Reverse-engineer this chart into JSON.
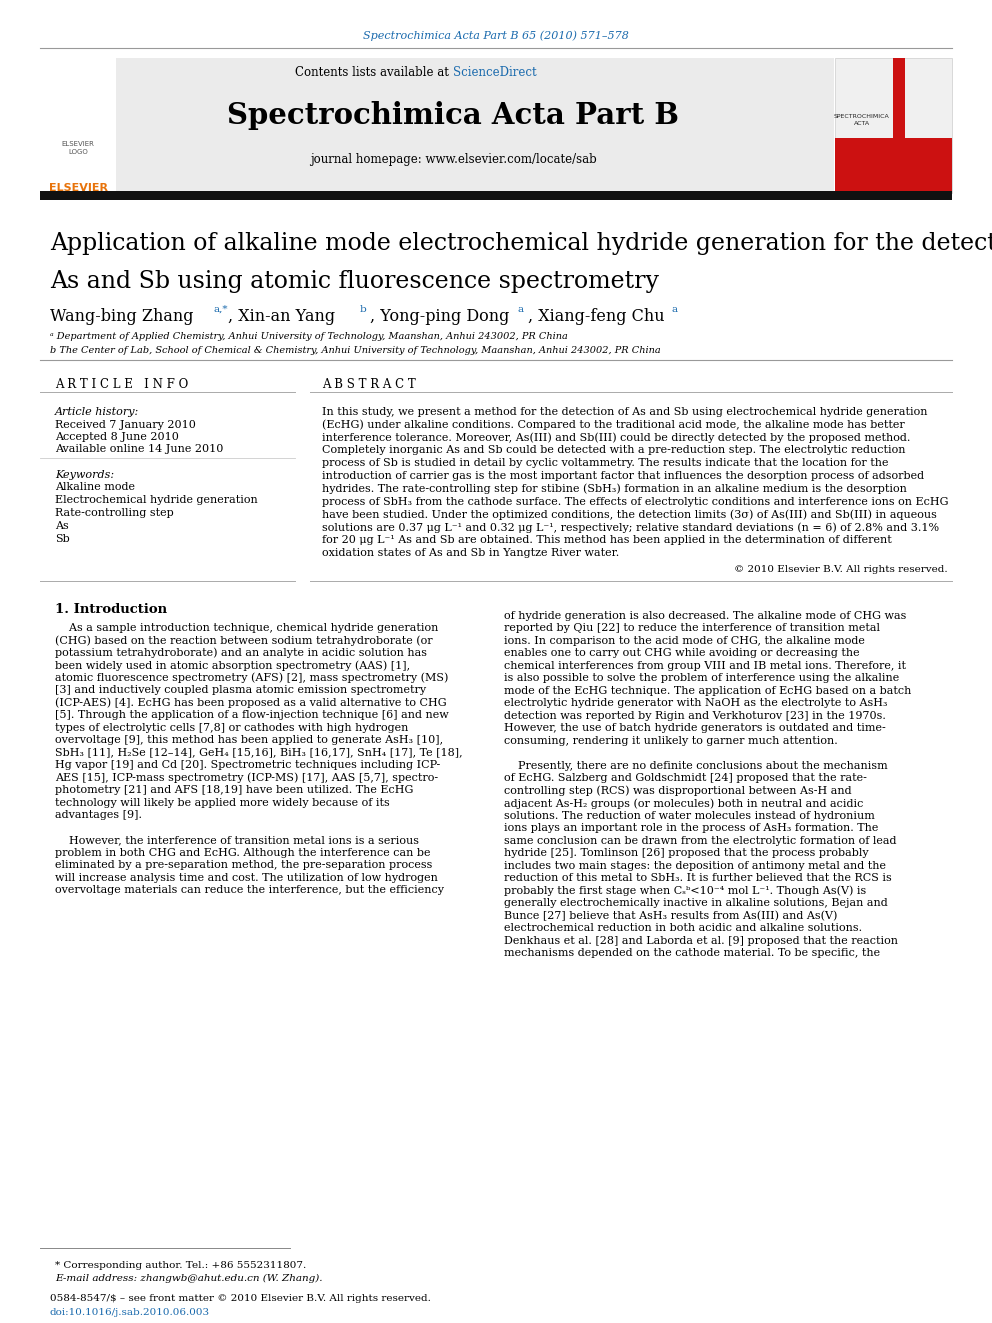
{
  "journal_ref": "Spectrochimica Acta Part B 65 (2010) 571–578",
  "journal_name": "Spectrochimica Acta Part B",
  "journal_homepage": "journal homepage: www.elsevier.com/locate/sab",
  "title_line1": "Application of alkaline mode electrochemical hydride generation for the detection of",
  "title_line2": "As and Sb using atomic fluorescence spectrometry",
  "affil_a": "ᵃ Department of Applied Chemistry, Anhui University of Technology, Maanshan, Anhui 243002, PR China",
  "affil_b": "b The Center of Lab, School of Chemical & Chemistry, Anhui University of Technology, Maanshan, Anhui 243002, PR China",
  "article_info_header": "A R T I C L E   I N F O",
  "abstract_header": "A B S T R A C T",
  "article_history_label": "Article history:",
  "received": "Received 7 January 2010",
  "accepted": "Accepted 8 June 2010",
  "available": "Available online 14 June 2010",
  "keywords_label": "Keywords:",
  "keywords": [
    "Alkaline mode",
    "Electrochemical hydride generation",
    "Rate-controlling step",
    "As",
    "Sb"
  ],
  "abstract_lines": [
    "In this study, we present a method for the detection of As and Sb using electrochemical hydride generation",
    "(EcHG) under alkaline conditions. Compared to the traditional acid mode, the alkaline mode has better",
    "interference tolerance. Moreover, As(III) and Sb(III) could be directly detected by the proposed method.",
    "Completely inorganic As and Sb could be detected with a pre-reduction step. The electrolytic reduction",
    "process of Sb is studied in detail by cyclic voltammetry. The results indicate that the location for the",
    "introduction of carrier gas is the most important factor that influences the desorption process of adsorbed",
    "hydrides. The rate-controlling step for stibine (SbH₃) formation in an alkaline medium is the desorption",
    "process of SbH₃ from the cathode surface. The effects of electrolytic conditions and interference ions on EcHG",
    "have been studied. Under the optimized conditions, the detection limits (3σ) of As(III) and Sb(III) in aqueous",
    "solutions are 0.37 μg L⁻¹ and 0.32 μg L⁻¹, respectively; relative standard deviations (n = 6) of 2.8% and 3.1%",
    "for 20 μg L⁻¹ As and Sb are obtained. This method has been applied in the determination of different",
    "oxidation states of As and Sb in Yangtze River water."
  ],
  "copyright": "© 2010 Elsevier B.V. All rights reserved.",
  "intro_header": "1. Introduction",
  "intro_left_lines": [
    "    As a sample introduction technique, chemical hydride generation",
    "(CHG) based on the reaction between sodium tetrahydroborate (or",
    "potassium tetrahydroborate) and an analyte in acidic solution has",
    "been widely used in atomic absorption spectrometry (AAS) [1],",
    "atomic fluorescence spectrometry (AFS) [2], mass spectrometry (MS)",
    "[3] and inductively coupled plasma atomic emission spectrometry",
    "(ICP-AES) [4]. EcHG has been proposed as a valid alternative to CHG",
    "[5]. Through the application of a flow-injection technique [6] and new",
    "types of electrolytic cells [7,8] or cathodes with high hydrogen",
    "overvoltage [9], this method has been applied to generate AsH₃ [10],",
    "SbH₃ [11], H₂Se [12–14], GeH₄ [15,16], BiH₃ [16,17], SnH₄ [17], Te [18],",
    "Hg vapor [19] and Cd [20]. Spectrometric techniques including ICP-",
    "AES [15], ICP-mass spectrometry (ICP-MS) [17], AAS [5,7], spectro-",
    "photometry [21] and AFS [18,19] have been utilized. The EcHG",
    "technology will likely be applied more widely because of its",
    "advantages [9].",
    "",
    "    However, the interference of transition metal ions is a serious",
    "problem in both CHG and EcHG. Although the interference can be",
    "eliminated by a pre-separation method, the pre-separation process",
    "will increase analysis time and cost. The utilization of low hydrogen",
    "overvoltage materials can reduce the interference, but the efficiency"
  ],
  "intro_right_lines": [
    "of hydride generation is also decreased. The alkaline mode of CHG was",
    "reported by Qiu [22] to reduce the interference of transition metal",
    "ions. In comparison to the acid mode of CHG, the alkaline mode",
    "enables one to carry out CHG while avoiding or decreasing the",
    "chemical interferences from group VIII and IB metal ions. Therefore, it",
    "is also possible to solve the problem of interference using the alkaline",
    "mode of the EcHG technique. The application of EcHG based on a batch",
    "electrolytic hydride generator with NaOH as the electrolyte to AsH₃",
    "detection was reported by Rigin and Verkhoturov [23] in the 1970s.",
    "However, the use of batch hydride generators is outdated and time-",
    "consuming, rendering it unlikely to garner much attention.",
    "",
    "    Presently, there are no definite conclusions about the mechanism",
    "of EcHG. Salzberg and Goldschmidt [24] proposed that the rate-",
    "controlling step (RCS) was disproportional between As-H and",
    "adjacent As-H₂ groups (or molecules) both in neutral and acidic",
    "solutions. The reduction of water molecules instead of hydronium",
    "ions plays an important role in the process of AsH₃ formation. The",
    "same conclusion can be drawn from the electrolytic formation of lead",
    "hydride [25]. Tomlinson [26] proposed that the process probably",
    "includes two main stages: the deposition of antimony metal and the",
    "reduction of this metal to SbH₃. It is further believed that the RCS is",
    "probably the first stage when Cₛᵇ<10⁻⁴ mol L⁻¹. Though As(V) is",
    "generally electrochemically inactive in alkaline solutions, Bejan and",
    "Bunce [27] believe that AsH₃ results from As(III) and As(V)",
    "electrochemical reduction in both acidic and alkaline solutions.",
    "Denkhaus et al. [28] and Laborda et al. [9] proposed that the reaction",
    "mechanisms depended on the cathode material. To be specific, the"
  ],
  "footnote_star": "* Corresponding author. Tel.: +86 5552311807.",
  "footnote_email": "E-mail address: zhangwb@ahut.edu.cn (W. Zhang).",
  "footer_issn": "0584-8547/$ – see front matter © 2010 Elsevier B.V. All rights reserved.",
  "footer_doi": "doi:10.1016/j.sab.2010.06.003",
  "bg_color": "#ffffff",
  "link_color": "#1a6aad",
  "black": "#000000"
}
